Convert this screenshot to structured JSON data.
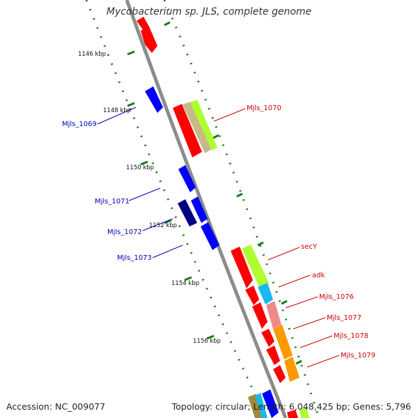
{
  "title": "Mycobacterium sp. JLS, complete genome",
  "accession_label": "Accession: NC_009077",
  "stats_label": "Topology: circular; Length: 6,048,425 bp; Genes: 5,796",
  "colors": {
    "backbone": "#8c8c8c",
    "tick": "#1a7a1a",
    "forward_label": "#cc0000",
    "reverse_label": "#0000bb",
    "cds_forward": "#ff0000",
    "cds_reverse": "#0000ff",
    "cds_reverse_dark": "#000080",
    "gene_green": "#adff2f",
    "gene_tan": "#c8b98a",
    "gene_cyan": "#1ab8f0",
    "gene_pink": "#f08a8a",
    "gene_orange": "#ff9900"
  },
  "scale_labels": [
    "1146 kbp",
    "1148 kbp",
    "1150 kbp",
    "1152 kbp",
    "1154 kbp",
    "1156 kbp"
  ],
  "forward_genes": [
    "Mjls_1070",
    "secY",
    "adk",
    "Mjls_1076",
    "Mjls_1077",
    "Mjls_1078",
    "Mjls_1079"
  ],
  "reverse_genes": [
    "Mjls_1069",
    "Mjls_1071",
    "Mjls_1072",
    "Mjls_1073"
  ]
}
